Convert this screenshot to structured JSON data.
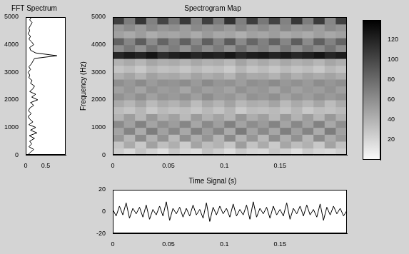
{
  "chart_data": [
    {
      "type": "line",
      "title": "FFT Spectrum",
      "orientation": "horizontal",
      "color": "#000000",
      "grid": false,
      "x": [
        0,
        100,
        200,
        300,
        400,
        500,
        600,
        700,
        800,
        900,
        1000,
        1100,
        1200,
        1300,
        1400,
        1500,
        1600,
        1700,
        1800,
        1900,
        2000,
        2100,
        2200,
        2300,
        2400,
        2500,
        2600,
        2700,
        2800,
        2900,
        3000,
        3100,
        3200,
        3300,
        3400,
        3500,
        3600,
        3700,
        3800,
        3900,
        4000,
        4100,
        4200,
        4300,
        4400,
        4500,
        4600,
        4700,
        4800,
        4900,
        5000
      ],
      "values": [
        0.05,
        0.12,
        0.2,
        0.08,
        0.15,
        0.1,
        0.22,
        0.09,
        0.28,
        0.12,
        0.25,
        0.08,
        0.18,
        0.1,
        0.06,
        0.14,
        0.07,
        0.1,
        0.2,
        0.12,
        0.3,
        0.15,
        0.25,
        0.1,
        0.18,
        0.22,
        0.12,
        0.16,
        0.08,
        0.1,
        0.06,
        0.12,
        0.08,
        0.14,
        0.18,
        0.22,
        0.78,
        0.25,
        0.12,
        0.1,
        0.2,
        0.15,
        0.08,
        0.12,
        0.06,
        0.1,
        0.08,
        0.12,
        0.16,
        0.1,
        0.14
      ],
      "xlim": [
        0,
        1
      ],
      "xticks": [
        0,
        0.5
      ],
      "ylim": [
        0,
        5000
      ],
      "yticks": [
        0,
        1000,
        2000,
        3000,
        4000,
        5000
      ]
    },
    {
      "type": "heatmap",
      "title": "Spectrogram Map",
      "y_label": "Frequency (Hz)",
      "grid": false,
      "x_edges": [
        0,
        0.01,
        0.02,
        0.03,
        0.04,
        0.05,
        0.06,
        0.07,
        0.08,
        0.09,
        0.1,
        0.11,
        0.12,
        0.13,
        0.14,
        0.15,
        0.16,
        0.17,
        0.18,
        0.19,
        0.2,
        0.21
      ],
      "y_edges": [
        0,
        250,
        500,
        750,
        1000,
        1250,
        1500,
        1750,
        2000,
        2250,
        2500,
        2750,
        3000,
        3250,
        3500,
        3750,
        4000,
        4250,
        4500,
        4750,
        5000
      ],
      "cells": [
        [
          25,
          18,
          30,
          22,
          15,
          28,
          20,
          17,
          31,
          24,
          16,
          27,
          21,
          19,
          29,
          23,
          15,
          26,
          20,
          18,
          24
        ],
        [
          30,
          45,
          28,
          50,
          33,
          42,
          26,
          48,
          35,
          40,
          29,
          52,
          31,
          44,
          27,
          47,
          34,
          41,
          28,
          49,
          32
        ],
        [
          55,
          38,
          62,
          41,
          58,
          36,
          60,
          43,
          57,
          39,
          63,
          40,
          56,
          37,
          61,
          42,
          59,
          38,
          62,
          44,
          55
        ],
        [
          48,
          66,
          44,
          70,
          50,
          64,
          46,
          68,
          52,
          65,
          45,
          71,
          49,
          63,
          47,
          69,
          51,
          66,
          44,
          70,
          50
        ],
        [
          62,
          50,
          67,
          48,
          60,
          52,
          65,
          47,
          63,
          51,
          68,
          49,
          61,
          53,
          66,
          48,
          64,
          50,
          67,
          46,
          60
        ],
        [
          40,
          52,
          38,
          55,
          42,
          50,
          36,
          53,
          41,
          49,
          39,
          56,
          43,
          51,
          37,
          54,
          40,
          52,
          38,
          55,
          42
        ],
        [
          35,
          30,
          38,
          28,
          36,
          32,
          34,
          29,
          37,
          31,
          39,
          27,
          35,
          33,
          36,
          30,
          38,
          28,
          34,
          32,
          36
        ],
        [
          45,
          38,
          48,
          36,
          44,
          40,
          47,
          35,
          46,
          39,
          49,
          37,
          43,
          41,
          48,
          36,
          45,
          38,
          47,
          35,
          44
        ],
        [
          58,
          52,
          60,
          50,
          57,
          54,
          59,
          51,
          61,
          53,
          56,
          49,
          58,
          55,
          60,
          50,
          57,
          52,
          59,
          54,
          58
        ],
        [
          50,
          56,
          48,
          58,
          52,
          55,
          47,
          57,
          51,
          54,
          49,
          59,
          53,
          56,
          48,
          57,
          50,
          55,
          52,
          58,
          51
        ],
        [
          60,
          55,
          62,
          53,
          59,
          57,
          61,
          54,
          63,
          56,
          58,
          52,
          60,
          57,
          62,
          55,
          59,
          54,
          61,
          56,
          60
        ],
        [
          42,
          48,
          40,
          50,
          44,
          46,
          41,
          49,
          43,
          47,
          39,
          51,
          45,
          46,
          40,
          50,
          42,
          48,
          44,
          49,
          43
        ],
        [
          30,
          35,
          28,
          37,
          32,
          34,
          29,
          36,
          31,
          33,
          27,
          38,
          30,
          35,
          29,
          36,
          31,
          34,
          28,
          37,
          32
        ],
        [
          40,
          45,
          38,
          47,
          42,
          44,
          39,
          46,
          41,
          43,
          37,
          48,
          40,
          45,
          39,
          46,
          41,
          44,
          38,
          47,
          42
        ],
        [
          118,
          125,
          120,
          128,
          115,
          122,
          126,
          119,
          124,
          121,
          127,
          117,
          123,
          126,
          120,
          125,
          118,
          122,
          128,
          119,
          124
        ],
        [
          60,
          72,
          58,
          75,
          62,
          70,
          57,
          74,
          61,
          71,
          59,
          76,
          63,
          69,
          58,
          73,
          60,
          72,
          62,
          75,
          61
        ],
        [
          85,
          65,
          88,
          62,
          84,
          67,
          86,
          64,
          87,
          66,
          89,
          63,
          83,
          68,
          85,
          65,
          88,
          62,
          86,
          67,
          84
        ],
        [
          50,
          45,
          52,
          43,
          49,
          47,
          51,
          44,
          53,
          46,
          48,
          42,
          50,
          47,
          52,
          45,
          49,
          44,
          51,
          46,
          50
        ],
        [
          55,
          62,
          53,
          64,
          56,
          60,
          52,
          63,
          57,
          61,
          54,
          65,
          55,
          62,
          53,
          64,
          56,
          60,
          52,
          63,
          57
        ],
        [
          105,
          70,
          110,
          68,
          102,
          72,
          108,
          66,
          104,
          71,
          112,
          69,
          106,
          73,
          103,
          67,
          109,
          70,
          107,
          65,
          104
        ]
      ],
      "xlim": [
        0,
        0.21
      ],
      "xticks": [
        0,
        0.05,
        0.1,
        0.15
      ],
      "ylim": [
        0,
        5000
      ],
      "yticks": [
        0,
        1000,
        2000,
        3000,
        4000,
        5000
      ],
      "colorbar_range": [
        0,
        140
      ],
      "colorbar_ticks": [
        20,
        40,
        60,
        80,
        100,
        120
      ]
    },
    {
      "type": "line",
      "title": "Time Signal (s)",
      "color": "#000000",
      "grid": false,
      "x": [
        0,
        0.003,
        0.006,
        0.009,
        0.012,
        0.015,
        0.018,
        0.021,
        0.024,
        0.027,
        0.03,
        0.033,
        0.036,
        0.039,
        0.042,
        0.045,
        0.048,
        0.051,
        0.054,
        0.057,
        0.06,
        0.063,
        0.066,
        0.069,
        0.072,
        0.075,
        0.078,
        0.081,
        0.084,
        0.087,
        0.09,
        0.093,
        0.096,
        0.099,
        0.102,
        0.105,
        0.108,
        0.111,
        0.114,
        0.117,
        0.12,
        0.123,
        0.126,
        0.129,
        0.132,
        0.135,
        0.138,
        0.141,
        0.144,
        0.147,
        0.15,
        0.153,
        0.156,
        0.159,
        0.162,
        0.165,
        0.168,
        0.171,
        0.174,
        0.177,
        0.18,
        0.183,
        0.186,
        0.189,
        0.192,
        0.195,
        0.198,
        0.201,
        0.204,
        0.207,
        0.21
      ],
      "values": [
        2,
        -4,
        5,
        -3,
        8,
        -6,
        3,
        -2,
        4,
        -5,
        6,
        -7,
        2,
        -3,
        5,
        -4,
        9,
        -8,
        3,
        -2,
        4,
        -5,
        3,
        -4,
        6,
        -3,
        2,
        -6,
        8,
        -9,
        4,
        -3,
        5,
        -2,
        3,
        -5,
        7,
        -4,
        2,
        -3,
        6,
        -7,
        9,
        -5,
        3,
        -2,
        4,
        -6,
        5,
        -3,
        2,
        -4,
        8,
        -7,
        3,
        -2,
        5,
        -4,
        6,
        -3,
        2,
        -5,
        7,
        -8,
        4,
        -3,
        5,
        -2,
        3,
        -4,
        1
      ],
      "xlim": [
        0,
        0.21
      ],
      "xticks": [
        0,
        0.05,
        0.1,
        0.15
      ],
      "ylim": [
        -20,
        20
      ],
      "yticks": [
        -20,
        0,
        20
      ]
    }
  ]
}
